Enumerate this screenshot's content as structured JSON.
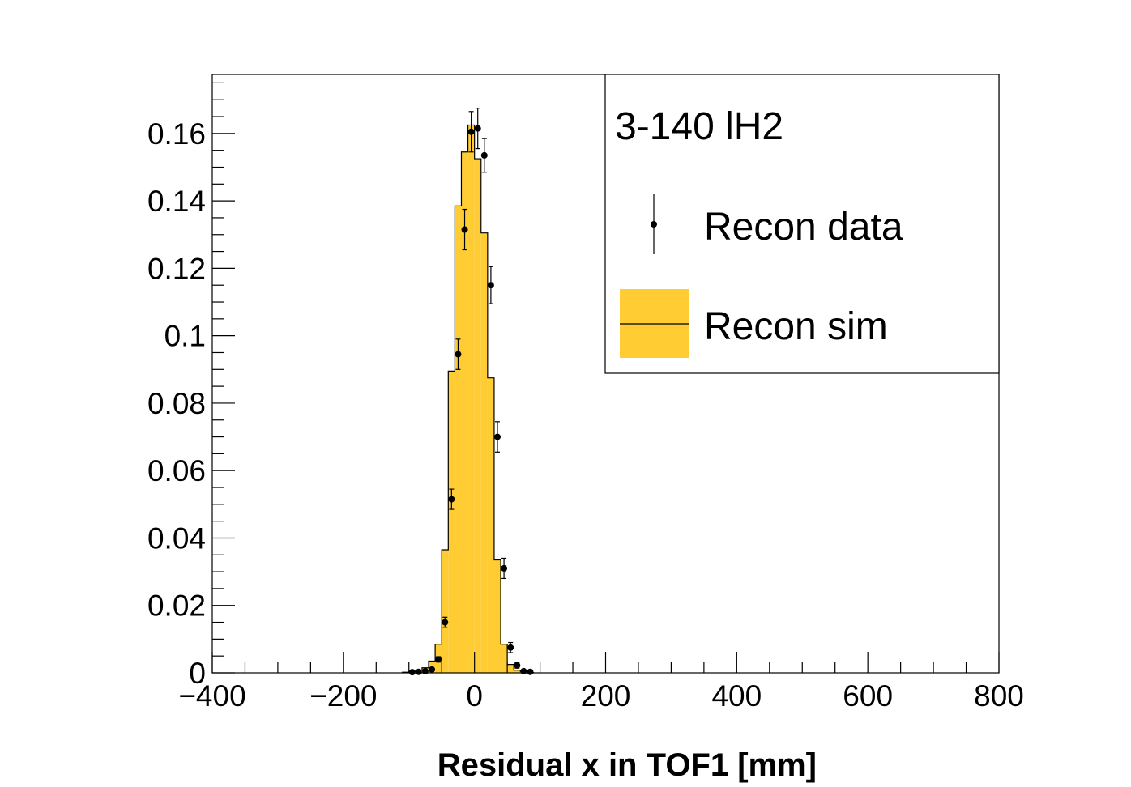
{
  "chart_data": {
    "type": "histogram",
    "title": "",
    "xlabel": "Residual x in TOF1 [mm]",
    "ylabel": "",
    "xlim": [
      -400,
      800
    ],
    "ylim": [
      0,
      0.1775
    ],
    "grid": false,
    "x_ticks": [
      "−400",
      "−200",
      "0",
      "200",
      "400",
      "600",
      "800"
    ],
    "y_ticks": [
      "0",
      "0.02",
      "0.04",
      "0.06",
      "0.08",
      "0.1",
      "0.12",
      "0.14",
      "0.16"
    ],
    "legend": {
      "position": "top-right",
      "header": "3-140 lH2",
      "entries": [
        "Recon data",
        "Recon sim"
      ]
    },
    "series": [
      {
        "name": "Recon sim",
        "kind": "filled-histogram",
        "color": "#ffcc33",
        "bin_width": 10,
        "bin_low": [
          -110,
          -100,
          -90,
          -80,
          -70,
          -60,
          -50,
          -40,
          -30,
          -20,
          -10,
          0,
          10,
          20,
          30,
          40,
          50,
          60,
          70,
          80
        ],
        "values": [
          0.0002,
          0.0004,
          0.0008,
          0.0015,
          0.0035,
          0.0085,
          0.0365,
          0.0895,
          0.1385,
          0.1545,
          0.1625,
          0.1525,
          0.1305,
          0.0875,
          0.0335,
          0.0085,
          0.0025,
          0.0008,
          0.0004,
          0.0001
        ]
      },
      {
        "name": "Recon data",
        "kind": "points-with-errors",
        "color": "#000000",
        "x": [
          -95,
          -85,
          -75,
          -65,
          -55,
          -45,
          -35,
          -25,
          -15,
          -5,
          5,
          15,
          25,
          35,
          45,
          55,
          65,
          75,
          85
        ],
        "values": [
          0.0002,
          0.0003,
          0.0005,
          0.001,
          0.004,
          0.015,
          0.0515,
          0.0945,
          0.1315,
          0.1605,
          0.1615,
          0.1535,
          0.115,
          0.07,
          0.031,
          0.0075,
          0.0022,
          0.0005,
          0.0003
        ],
        "errors": [
          0.0002,
          0.0002,
          0.0003,
          0.0004,
          0.0008,
          0.0015,
          0.003,
          0.0045,
          0.006,
          0.006,
          0.006,
          0.005,
          0.0055,
          0.0045,
          0.003,
          0.0015,
          0.0008,
          0.0003,
          0.0002
        ]
      }
    ]
  }
}
